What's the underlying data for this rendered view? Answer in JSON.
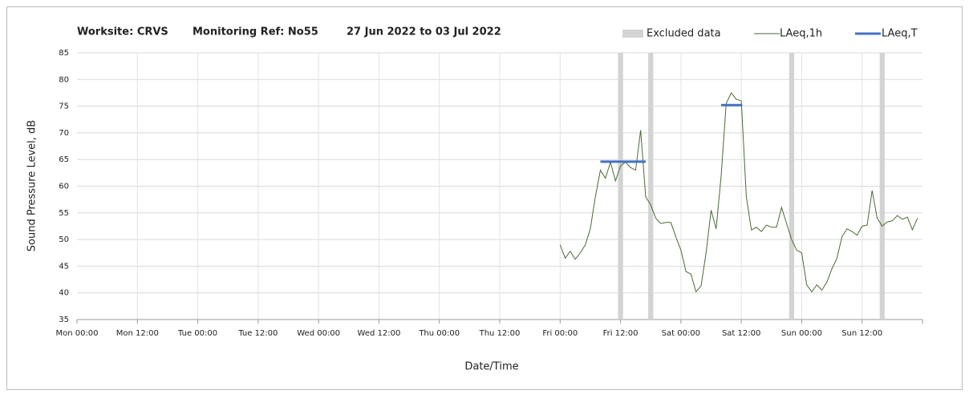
{
  "chart_data": {
    "type": "line",
    "title_parts": [
      "Worksite: CRVS",
      "Monitoring Ref: No55",
      "27 Jun 2022 to 03 Jul 2022"
    ],
    "ylabel": "Sound Pressure Level, dB",
    "xlabel": "Date/Time",
    "xlim": [
      0,
      168
    ],
    "xticks": [
      {
        "value": 0,
        "label": "Mon 00:00"
      },
      {
        "value": 12,
        "label": "Mon 12:00"
      },
      {
        "value": 24,
        "label": "Tue 00:00"
      },
      {
        "value": 36,
        "label": "Tue 12:00"
      },
      {
        "value": 48,
        "label": "Wed 00:00"
      },
      {
        "value": 60,
        "label": "Wed 12:00"
      },
      {
        "value": 72,
        "label": "Thu 00:00"
      },
      {
        "value": 84,
        "label": "Thu 12:00"
      },
      {
        "value": 96,
        "label": "Fri 00:00"
      },
      {
        "value": 108,
        "label": "Fri 12:00"
      },
      {
        "value": 120,
        "label": "Sat 00:00"
      },
      {
        "value": 132,
        "label": "Sat 12:00"
      },
      {
        "value": 144,
        "label": "Sun 00:00"
      },
      {
        "value": 156,
        "label": "Sun 12:00"
      }
    ],
    "ylim": [
      35,
      85
    ],
    "yticks": [
      35,
      40,
      45,
      50,
      55,
      60,
      65,
      70,
      75,
      80,
      85
    ],
    "grid": true,
    "legend": "top-right",
    "excluded": {
      "name": "Excluded data",
      "color": "#d3d3d3",
      "ranges": [
        [
          107.5,
          108.5
        ],
        [
          113.5,
          114.5
        ],
        [
          141.5,
          142.5
        ],
        [
          159.5,
          160.5
        ]
      ]
    },
    "series": [
      {
        "name": "LAeq,1h",
        "color": "#4a6b34",
        "x": [
          96,
          97,
          98,
          99,
          100,
          101,
          102,
          103,
          104,
          105,
          106,
          107,
          108,
          109,
          110,
          111,
          112,
          113,
          114,
          115,
          116,
          117,
          118,
          119,
          120,
          121,
          122,
          123,
          124,
          125,
          126,
          127,
          128,
          129,
          130,
          131,
          132,
          133,
          134,
          135,
          136,
          137,
          138,
          139,
          140,
          141,
          142,
          143,
          144,
          145,
          146,
          147,
          148,
          149,
          150,
          151,
          152,
          153,
          154,
          155,
          156,
          157,
          158,
          159,
          160,
          161,
          162,
          163,
          164,
          165,
          166,
          167
        ],
        "values": [
          49,
          46.5,
          47.8,
          46.3,
          47.5,
          49,
          52,
          58,
          63,
          61.5,
          64.5,
          61,
          63.8,
          64.5,
          63.5,
          63,
          70.5,
          58,
          56.5,
          54,
          53,
          53.2,
          53.2,
          50.5,
          48,
          44,
          43.5,
          40.2,
          41.3,
          47.5,
          55.5,
          52,
          62,
          75.5,
          77.5,
          76.3,
          76,
          58,
          51.8,
          52.3,
          51.5,
          52.7,
          52.3,
          52.3,
          56,
          53,
          50,
          48,
          47.5,
          41.5,
          40.2,
          41.5,
          40.5,
          42,
          44.5,
          46.5,
          50.5,
          52,
          51.5,
          50.8,
          52.5,
          52.7,
          59.2,
          54,
          52.5,
          53.3,
          53.5,
          54.5,
          53.8,
          54.2,
          51.8,
          54
        ]
      }
    ],
    "periods": {
      "name": "LAeq,T",
      "color": "#4472c4",
      "segments": [
        {
          "x": [
            104,
            113
          ],
          "value": 64.6
        },
        {
          "x": [
            128,
            132.2
          ],
          "value": 75.2
        }
      ]
    }
  }
}
